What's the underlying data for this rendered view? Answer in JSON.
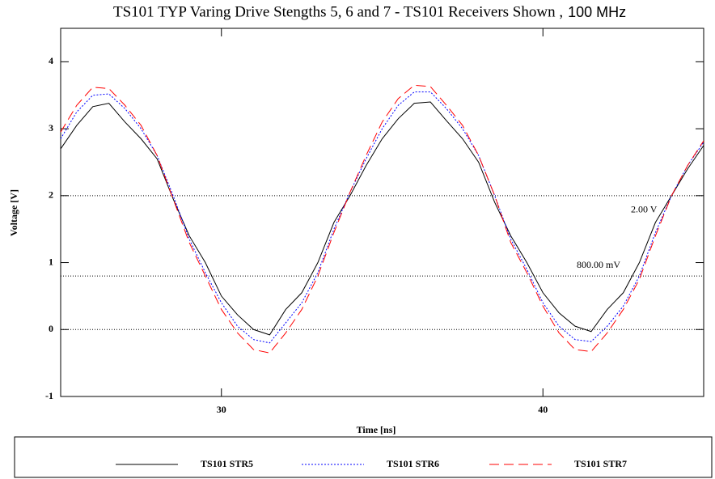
{
  "chart_data": {
    "type": "line",
    "title": "TS101 TYP Varing Drive Stengths 5, 6 and 7 - TS101 Receivers Shown  ,",
    "subtitle": "100 MHz",
    "x_label": "Time [ns]",
    "y_label": "Voltage [V]",
    "xlim": [
      25,
      45
    ],
    "xticks": [
      30,
      40
    ],
    "ylim": [
      -1,
      4.5
    ],
    "yticks": [
      -1,
      0,
      1,
      2,
      3,
      4
    ],
    "hlines": [
      {
        "value": 2,
        "label": "2.00 V"
      },
      {
        "value": 0.8,
        "label": "800.00 mV"
      },
      {
        "value": 0
      }
    ],
    "x": [
      25,
      25.5,
      26,
      26.5,
      27,
      27.5,
      28,
      28.5,
      29,
      29.5,
      30,
      30.5,
      31,
      31.5,
      32,
      32.5,
      33,
      33.5,
      34,
      34.5,
      35,
      35.5,
      36,
      36.5,
      37,
      37.5,
      38,
      38.5,
      39,
      39.5,
      40,
      40.5,
      41,
      41.5,
      42,
      42.5,
      43,
      43.5,
      44,
      44.5,
      45
    ],
    "series": [
      {
        "name": "TS101 STR5",
        "color": "#000000",
        "dash": "solid",
        "values": [
          2.7,
          3.05,
          3.33,
          3.38,
          3.1,
          2.85,
          2.55,
          1.95,
          1.4,
          1.0,
          0.5,
          0.22,
          0.0,
          -0.08,
          0.3,
          0.55,
          1.0,
          1.6,
          2.0,
          2.45,
          2.85,
          3.15,
          3.38,
          3.4,
          3.12,
          2.85,
          2.5,
          1.9,
          1.4,
          1.0,
          0.55,
          0.25,
          0.05,
          -0.03,
          0.3,
          0.55,
          1.0,
          1.6,
          2.0,
          2.4,
          2.75
        ]
      },
      {
        "name": "TS101 STR6",
        "color": "#0000ff",
        "dash": "dotted",
        "values": [
          2.85,
          3.25,
          3.5,
          3.52,
          3.3,
          3.0,
          2.6,
          2.0,
          1.35,
          0.85,
          0.4,
          0.05,
          -0.15,
          -0.2,
          0.1,
          0.4,
          0.85,
          1.5,
          2.05,
          2.55,
          3.0,
          3.35,
          3.55,
          3.55,
          3.3,
          3.0,
          2.6,
          2.0,
          1.35,
          0.9,
          0.4,
          0.05,
          -0.15,
          -0.18,
          0.05,
          0.35,
          0.8,
          1.45,
          2.0,
          2.45,
          2.8
        ]
      },
      {
        "name": "TS101 STR7",
        "color": "#ff0000",
        "dash": "dashed",
        "values": [
          2.95,
          3.35,
          3.62,
          3.6,
          3.35,
          3.05,
          2.6,
          1.95,
          1.3,
          0.8,
          0.3,
          -0.05,
          -0.3,
          -0.35,
          -0.05,
          0.3,
          0.8,
          1.45,
          2.05,
          2.6,
          3.1,
          3.45,
          3.65,
          3.63,
          3.35,
          3.05,
          2.6,
          2.0,
          1.3,
          0.85,
          0.35,
          -0.05,
          -0.3,
          -0.33,
          -0.05,
          0.3,
          0.75,
          1.4,
          2.0,
          2.45,
          2.82
        ]
      }
    ]
  }
}
